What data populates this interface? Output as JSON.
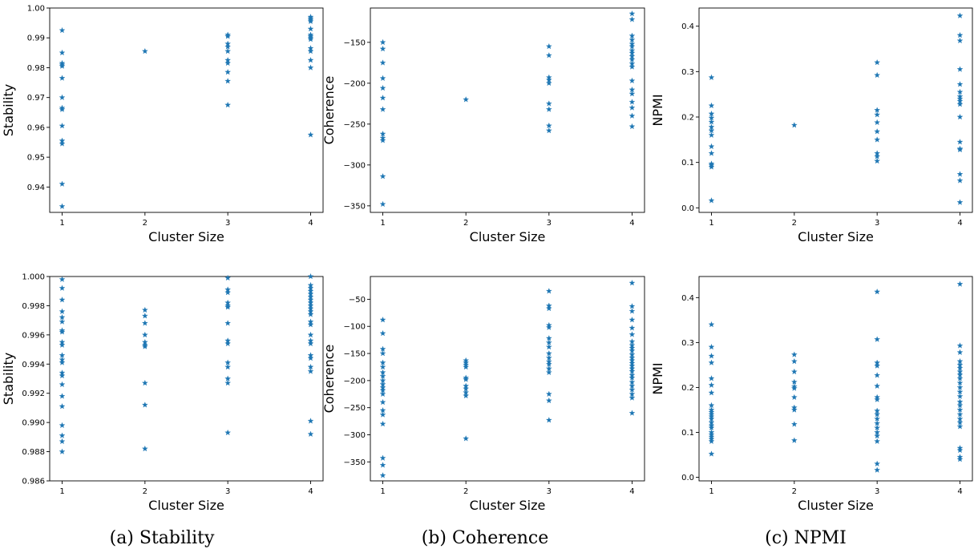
{
  "captions": [
    "(a) Stability",
    "(b) Coherence",
    "(c) NPMI"
  ],
  "colors": {
    "marker": "#1f77b4",
    "axes": "#000000"
  },
  "chart_data": [
    {
      "type": "scatter",
      "marker": "star",
      "xlabel": "Cluster Size",
      "ylabel": "Stability",
      "xticks": [
        "1",
        "2",
        "3",
        "4"
      ],
      "yticks": [
        "0.94",
        "0.95",
        "0.96",
        "0.97",
        "0.98",
        "0.99",
        "1.00"
      ],
      "xlim": [
        0.85,
        4.15
      ],
      "ylim": [
        0.9315,
        1.0
      ],
      "points": [
        {
          "x": 1,
          "y": [
            0.9925,
            0.985,
            0.9815,
            0.981,
            0.9805,
            0.9765,
            0.97,
            0.9665,
            0.966,
            0.9605,
            0.9555,
            0.9545,
            0.941,
            0.9335
          ]
        },
        {
          "x": 2,
          "y": [
            0.9855
          ]
        },
        {
          "x": 3,
          "y": [
            0.991,
            0.9905,
            0.988,
            0.987,
            0.9855,
            0.9825,
            0.9815,
            0.9785,
            0.9755,
            0.9675
          ]
        },
        {
          "x": 4,
          "y": [
            0.997,
            0.9965,
            0.996,
            0.9955,
            0.993,
            0.991,
            0.9905,
            0.99,
            0.9895,
            0.9865,
            0.9855,
            0.9825,
            0.98,
            0.9575
          ]
        }
      ]
    },
    {
      "type": "scatter",
      "marker": "star",
      "xlabel": "Cluster Size",
      "ylabel": "Coherence",
      "xticks": [
        "1",
        "2",
        "3",
        "4"
      ],
      "yticks": [
        "−350",
        "−300",
        "−250",
        "−200",
        "−150"
      ],
      "xlim": [
        0.85,
        4.15
      ],
      "ylim": [
        -358,
        -108
      ],
      "points": [
        {
          "x": 1,
          "y": [
            -150,
            -158,
            -175,
            -194,
            -206,
            -218,
            -232,
            -262,
            -267,
            -270,
            -314,
            -348
          ]
        },
        {
          "x": 2,
          "y": [
            -220
          ]
        },
        {
          "x": 3,
          "y": [
            -155,
            -166,
            -193,
            -196,
            -200,
            -225,
            -232,
            -252,
            -258
          ]
        },
        {
          "x": 4,
          "y": [
            -115,
            -122,
            -142,
            -147,
            -152,
            -155,
            -160,
            -163,
            -167,
            -171,
            -176,
            -180,
            -197,
            -208,
            -213,
            -223,
            -230,
            -240,
            -253
          ]
        }
      ]
    },
    {
      "type": "scatter",
      "marker": "star",
      "xlabel": "Cluster Size",
      "ylabel": "NPMI",
      "xticks": [
        "1",
        "2",
        "3",
        "4"
      ],
      "yticks": [
        "0.0",
        "0.1",
        "0.2",
        "0.3",
        "0.4"
      ],
      "xlim": [
        0.85,
        4.15
      ],
      "ylim": [
        -0.01,
        0.44
      ],
      "points": [
        {
          "x": 1,
          "y": [
            0.287,
            0.225,
            0.207,
            0.198,
            0.189,
            0.178,
            0.17,
            0.16,
            0.135,
            0.12,
            0.097,
            0.094,
            0.09,
            0.016
          ]
        },
        {
          "x": 2,
          "y": [
            0.182
          ]
        },
        {
          "x": 3,
          "y": [
            0.32,
            0.292,
            0.215,
            0.205,
            0.188,
            0.168,
            0.15,
            0.12,
            0.113,
            0.103
          ]
        },
        {
          "x": 4,
          "y": [
            0.423,
            0.38,
            0.368,
            0.305,
            0.272,
            0.255,
            0.245,
            0.24,
            0.235,
            0.228,
            0.2,
            0.145,
            0.13,
            0.128,
            0.074,
            0.06,
            0.012
          ]
        }
      ]
    },
    {
      "type": "scatter",
      "marker": "star",
      "xlabel": "Cluster Size",
      "ylabel": "Stability",
      "xticks": [
        "1",
        "2",
        "3",
        "4"
      ],
      "yticks": [
        "0.986",
        "0.988",
        "0.990",
        "0.992",
        "0.994",
        "0.996",
        "0.998",
        "1.000"
      ],
      "xlim": [
        0.85,
        4.15
      ],
      "ylim": [
        0.986,
        1.0
      ],
      "points": [
        {
          "x": 1,
          "y": [
            0.9998,
            0.9992,
            0.9984,
            0.9976,
            0.9972,
            0.9969,
            0.9963,
            0.9962,
            0.9955,
            0.9953,
            0.9946,
            0.9943,
            0.9941,
            0.9934,
            0.9932,
            0.9926,
            0.9918,
            0.9911,
            0.9898,
            0.9891,
            0.9887,
            0.988
          ]
        },
        {
          "x": 2,
          "y": [
            0.9977,
            0.9973,
            0.9968,
            0.996,
            0.9955,
            0.9953,
            0.9952,
            0.9927,
            0.9912,
            0.9882
          ]
        },
        {
          "x": 3,
          "y": [
            0.9999,
            0.9991,
            0.9989,
            0.9982,
            0.998,
            0.9979,
            0.9968,
            0.9956,
            0.9954,
            0.9941,
            0.9938,
            0.993,
            0.9927,
            0.9893
          ]
        },
        {
          "x": 4,
          "y": [
            1.0,
            0.9994,
            0.9992,
            0.999,
            0.9988,
            0.9986,
            0.9984,
            0.9982,
            0.998,
            0.9978,
            0.9976,
            0.9974,
            0.9969,
            0.9967,
            0.996,
            0.9956,
            0.9954,
            0.9946,
            0.9944,
            0.9938,
            0.9935,
            0.9901,
            0.9892
          ]
        }
      ]
    },
    {
      "type": "scatter",
      "marker": "star",
      "xlabel": "Cluster Size",
      "ylabel": "Coherence",
      "xticks": [
        "1",
        "2",
        "3",
        "4"
      ],
      "yticks": [
        "−350",
        "−300",
        "−250",
        "−200",
        "−150",
        "−100",
        "−50"
      ],
      "xlim": [
        0.85,
        4.15
      ],
      "ylim": [
        -385,
        -8
      ],
      "points": [
        {
          "x": 1,
          "y": [
            -88,
            -113,
            -142,
            -150,
            -167,
            -175,
            -185,
            -192,
            -200,
            -207,
            -213,
            -218,
            -225,
            -240,
            -255,
            -263,
            -280,
            -343,
            -356,
            -375
          ]
        },
        {
          "x": 2,
          "y": [
            -163,
            -167,
            -171,
            -175,
            -195,
            -198,
            -210,
            -215,
            -222,
            -228,
            -307
          ]
        },
        {
          "x": 3,
          "y": [
            -35,
            -62,
            -67,
            -98,
            -102,
            -122,
            -130,
            -138,
            -150,
            -158,
            -165,
            -170,
            -178,
            -185,
            -225,
            -237,
            -273
          ]
        },
        {
          "x": 4,
          "y": [
            -20,
            -63,
            -72,
            -88,
            -103,
            -115,
            -128,
            -135,
            -140,
            -145,
            -152,
            -158,
            -163,
            -168,
            -173,
            -178,
            -183,
            -190,
            -195,
            -203,
            -210,
            -217,
            -225,
            -232,
            -260
          ]
        }
      ]
    },
    {
      "type": "scatter",
      "marker": "star",
      "xlabel": "Cluster Size",
      "ylabel": "NPMI",
      "xticks": [
        "1",
        "2",
        "3",
        "4"
      ],
      "yticks": [
        "0.0",
        "0.1",
        "0.2",
        "0.3",
        "0.4"
      ],
      "xlim": [
        0.85,
        4.15
      ],
      "ylim": [
        -0.008,
        0.447
      ],
      "points": [
        {
          "x": 1,
          "y": [
            0.34,
            0.29,
            0.27,
            0.255,
            0.22,
            0.205,
            0.188,
            0.16,
            0.15,
            0.145,
            0.14,
            0.135,
            0.13,
            0.122,
            0.115,
            0.11,
            0.1,
            0.095,
            0.09,
            0.085,
            0.08,
            0.052
          ]
        },
        {
          "x": 2,
          "y": [
            0.273,
            0.258,
            0.235,
            0.212,
            0.202,
            0.198,
            0.178,
            0.155,
            0.15,
            0.118,
            0.082
          ]
        },
        {
          "x": 3,
          "y": [
            0.413,
            0.307,
            0.255,
            0.248,
            0.227,
            0.203,
            0.178,
            0.173,
            0.148,
            0.14,
            0.13,
            0.12,
            0.11,
            0.1,
            0.092,
            0.08,
            0.03,
            0.016
          ]
        },
        {
          "x": 4,
          "y": [
            0.43,
            0.293,
            0.278,
            0.258,
            0.25,
            0.243,
            0.235,
            0.228,
            0.22,
            0.21,
            0.2,
            0.19,
            0.18,
            0.168,
            0.16,
            0.15,
            0.14,
            0.13,
            0.122,
            0.113,
            0.065,
            0.06,
            0.045,
            0.04
          ]
        }
      ]
    }
  ]
}
